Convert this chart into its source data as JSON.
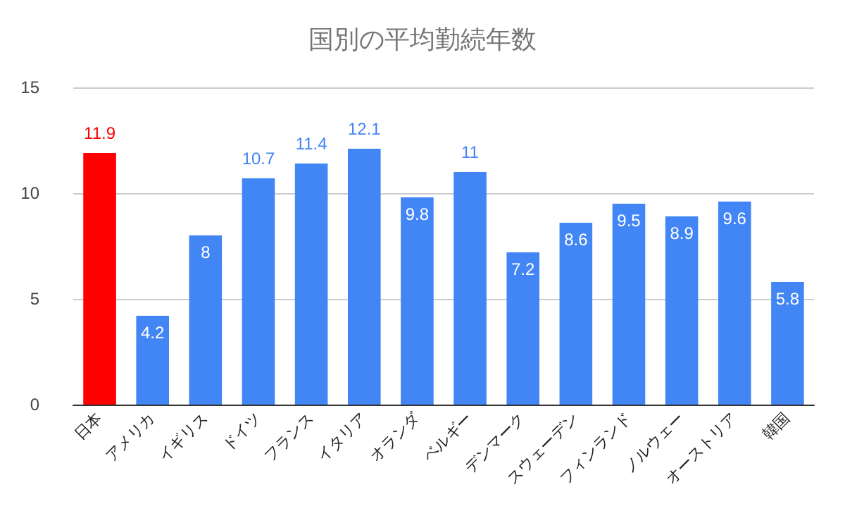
{
  "chart_data": {
    "type": "bar",
    "title": "国別の平均勤続年数",
    "categories": [
      "日本",
      "アメリカ",
      "イギリス",
      "ドイツ",
      "フランス",
      "イタリア",
      "オランダ",
      "ベルギー",
      "デンマーク",
      "スウェーデン",
      "フィンランド",
      "ノルウェー",
      "オーストリア",
      "韓国"
    ],
    "values": [
      11.9,
      4.2,
      8,
      10.7,
      11.4,
      12.1,
      9.8,
      11,
      7.2,
      8.6,
      9.5,
      8.9,
      9.6,
      5.8
    ],
    "colors": [
      "#ff0000",
      "#4285f4",
      "#4285f4",
      "#4285f4",
      "#4285f4",
      "#4285f4",
      "#4285f4",
      "#4285f4",
      "#4285f4",
      "#4285f4",
      "#4285f4",
      "#4285f4",
      "#4285f4",
      "#4285f4"
    ],
    "ylim": [
      0,
      15
    ],
    "yticks": [
      0,
      5,
      10,
      15
    ],
    "grid": "y",
    "data_labels": true
  }
}
